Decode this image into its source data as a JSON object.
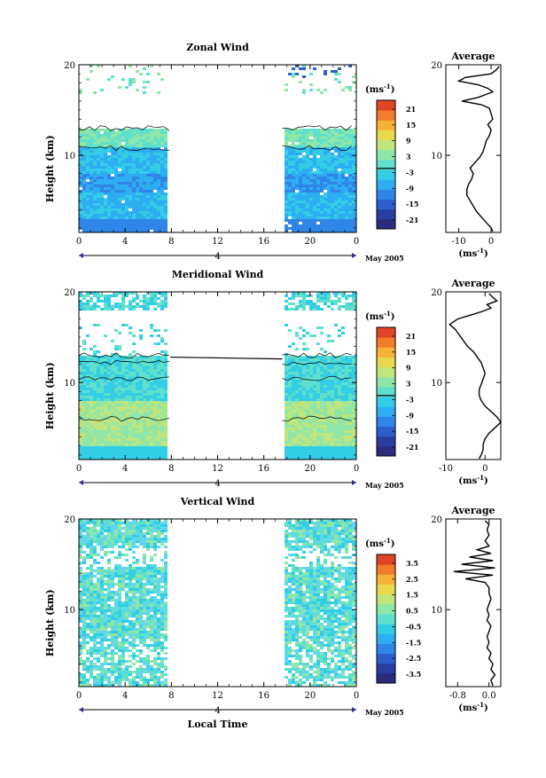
{
  "colors": {
    "colorbar": [
      "#2b2c7c",
      "#2a3ea0",
      "#2d5fcc",
      "#2f86e8",
      "#2eaef2",
      "#34cde6",
      "#5ee0cc",
      "#8ee6a8",
      "#bfe57c",
      "#e8d84e",
      "#f5b236",
      "#f27c2a",
      "#e04426"
    ],
    "zonal_palette": [
      "#2f86e8",
      "#2eaef2",
      "#34cde6",
      "#5ee0cc",
      "#8ee6a8"
    ],
    "meridional_palette": [
      "#34cde6",
      "#5ee0cc",
      "#8ee6a8",
      "#bfe57c"
    ],
    "vertical_palette": [
      "#34cde6",
      "#5ee0cc",
      "#8ee6a8",
      "#5fd7ee"
    ]
  },
  "date_label": "May 2005",
  "xlabel_bottom": "Local Time",
  "chart_data": [
    {
      "type": "heatmap",
      "title": "Zonal Wind",
      "ylabel": "Height (km)",
      "xlabel": "",
      "x_ticks": [
        "0",
        "4",
        "8",
        "12",
        "16",
        "20",
        "0"
      ],
      "y_ticks": [
        "10",
        "20"
      ],
      "date_marker": "4",
      "xlim": [
        0,
        24
      ],
      "ylim": [
        1.5,
        20
      ],
      "data_gap_hours": [
        7.9,
        17.6
      ],
      "colorbar": {
        "unit": "(ms-1)",
        "ticks": [
          "21",
          "15",
          "9",
          "3",
          "-3",
          "-9",
          "-15",
          "-21"
        ]
      },
      "average": {
        "title": "Average",
        "xlabel": "(ms-1)",
        "x_ticks": [
          "-10",
          "0"
        ],
        "xlim": [
          -14,
          3
        ],
        "y_ticks": [
          "10",
          "20"
        ],
        "height_km": [
          1.6,
          2.0,
          2.6,
          3.2,
          3.8,
          4.4,
          5.0,
          5.6,
          6.2,
          6.8,
          7.4,
          8.0,
          8.6,
          9.2,
          9.8,
          10.4,
          11.0,
          11.6,
          12.2,
          12.8,
          13.4,
          14.0,
          14.6,
          15.2,
          15.6,
          16.0,
          16.4,
          17.0,
          17.4,
          17.8,
          18.2,
          18.6,
          19.0,
          19.4,
          19.8
        ],
        "value_ms": [
          0.5,
          0.0,
          -1.5,
          -3.0,
          -4.5,
          -5.5,
          -6.5,
          -7.5,
          -7.5,
          -7.0,
          -6.0,
          -5.5,
          -6.5,
          -5.0,
          -3.5,
          -2.5,
          -2.0,
          -1.5,
          -0.5,
          0.0,
          -1.0,
          0.5,
          0.0,
          -0.5,
          -3.0,
          -9.0,
          -4.0,
          0.5,
          -1.0,
          -4.0,
          -10.0,
          -8.0,
          0.0,
          1.5,
          2.5
        ]
      }
    },
    {
      "type": "heatmap",
      "title": "Meridional Wind",
      "ylabel": "Height (km)",
      "xlabel": "",
      "x_ticks": [
        "0",
        "4",
        "8",
        "12",
        "16",
        "20",
        "0"
      ],
      "y_ticks": [
        "10",
        "20"
      ],
      "date_marker": "4",
      "xlim": [
        0,
        24
      ],
      "ylim": [
        1.5,
        20
      ],
      "data_gap_hours": [
        7.9,
        17.6
      ],
      "colorbar": {
        "unit": "(ms-1)",
        "ticks": [
          "21",
          "15",
          "9",
          "3",
          "-3",
          "-9",
          "-15",
          "-21"
        ]
      },
      "average": {
        "title": "Average",
        "xlabel": "(ms-1)",
        "x_ticks": [
          "-10",
          "0"
        ],
        "xlim": [
          -10,
          4
        ],
        "y_ticks": [
          "10",
          "20"
        ],
        "height_km": [
          1.6,
          2.0,
          2.6,
          3.2,
          3.8,
          4.4,
          5.0,
          5.6,
          6.2,
          6.8,
          7.4,
          8.0,
          8.6,
          9.2,
          9.8,
          10.4,
          11.0,
          11.6,
          12.2,
          12.8,
          13.4,
          14.0,
          14.6,
          15.2,
          15.8,
          16.4,
          17.0,
          17.4,
          17.8,
          18.2,
          18.6,
          19.0,
          19.4,
          19.8
        ],
        "value_ms": [
          -1.5,
          -1.0,
          -0.5,
          -0.5,
          0.0,
          1.0,
          2.5,
          4.0,
          3.0,
          1.5,
          0.0,
          -1.0,
          -1.5,
          -1.5,
          -1.0,
          -0.5,
          0.0,
          -0.5,
          -1.0,
          -2.0,
          -3.0,
          -4.5,
          -5.5,
          -6.5,
          -7.5,
          -9.0,
          -7.0,
          -4.0,
          -1.0,
          1.5,
          0.5,
          3.0,
          2.0,
          1.0
        ]
      }
    },
    {
      "type": "heatmap",
      "title": "Vertical Wind",
      "ylabel": "Height (km)",
      "xlabel": "Local Time",
      "x_ticks": [
        "0",
        "4",
        "8",
        "12",
        "16",
        "20",
        "0"
      ],
      "y_ticks": [
        "10",
        "20"
      ],
      "date_marker": "4",
      "xlim": [
        0,
        24
      ],
      "ylim": [
        1.5,
        20
      ],
      "data_gap_hours": [
        7.9,
        17.6
      ],
      "colorbar": {
        "unit": "(ms-1)",
        "ticks": [
          "3.5",
          "2.5",
          "1.5",
          "0.5",
          "-0.5",
          "-1.5",
          "-2.5",
          "-3.5"
        ]
      },
      "average": {
        "title": "Average",
        "xlabel": "(ms-1)",
        "x_ticks": [
          "-0.8",
          "0.0"
        ],
        "xlim": [
          -1.1,
          0.3
        ],
        "y_ticks": [
          "10",
          "20"
        ],
        "height_km": [
          1.6,
          2.2,
          2.8,
          3.4,
          4.0,
          4.6,
          5.2,
          5.8,
          6.4,
          7.0,
          7.6,
          8.2,
          8.8,
          9.4,
          10.0,
          10.6,
          11.2,
          11.8,
          12.4,
          13.0,
          13.4,
          13.8,
          14.2,
          14.6,
          15.0,
          15.4,
          15.8,
          16.2,
          16.6,
          17.0,
          17.6,
          18.2,
          18.8,
          19.4,
          19.8
        ],
        "value_ms": [
          0.1,
          0.05,
          0.15,
          0.05,
          0.1,
          0.0,
          0.05,
          -0.05,
          0.0,
          -0.05,
          0.0,
          0.05,
          -0.05,
          0.0,
          -0.05,
          0.0,
          0.05,
          0.0,
          0.0,
          -0.1,
          -0.6,
          0.1,
          -0.9,
          0.15,
          -0.7,
          0.1,
          -0.5,
          0.05,
          -0.3,
          0.0,
          -0.1,
          0.0,
          -0.05,
          0.0,
          -0.1
        ]
      }
    }
  ]
}
